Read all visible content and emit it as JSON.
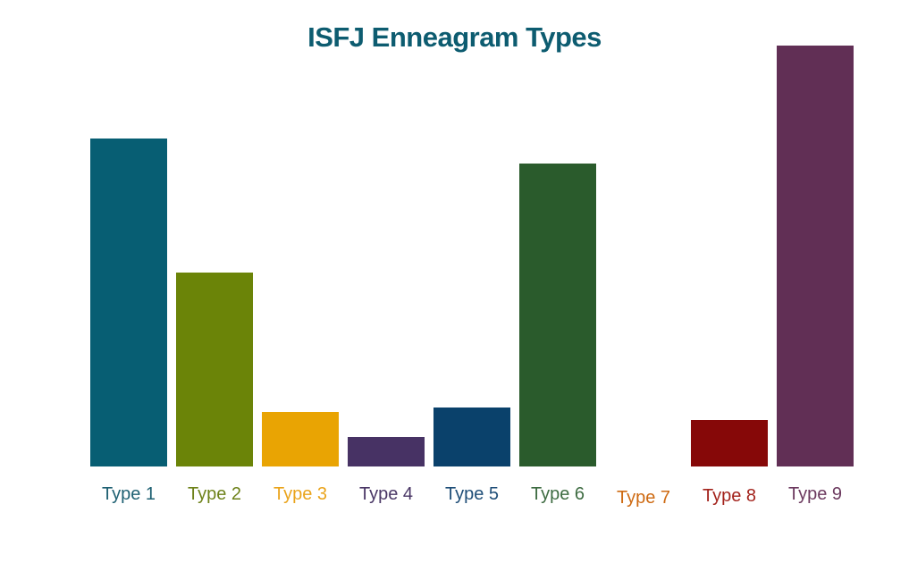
{
  "chart_data": {
    "type": "bar",
    "title": "ISFJ Enneagram Types",
    "title_color": "#0D5C70",
    "categories": [
      "Type 1",
      "Type 2",
      "Type 3",
      "Type 4",
      "Type 5",
      "Type 6",
      "Type 7",
      "Type 8",
      "Type 9"
    ],
    "values": [
      78,
      46,
      13,
      7,
      14,
      72,
      0,
      11,
      100
    ],
    "bar_colors": [
      "#075E73",
      "#6B8408",
      "#E9A403",
      "#473264",
      "#0A416B",
      "#2A5B2C",
      "#CE6A12",
      "#860808",
      "#612F55"
    ],
    "label_colors": [
      "#1F6173",
      "#6E821A",
      "#EAA41C",
      "#4A3766",
      "#1F4E78",
      "#3E6C42",
      "#CE6A12",
      "#A3231C",
      "#6C3A5F"
    ],
    "xlabel": "",
    "ylabel": "",
    "ylim": [
      0,
      100
    ],
    "y_axis_visible": false,
    "x_axis_line_visible": false,
    "gridlines": false,
    "legend_position": "none",
    "background_color": "#FFFFFF",
    "notes": "No numeric axis shown; values are bar heights relative to the tallest bar (Type 9 = 100). Type 7 has no bar (zero)."
  }
}
